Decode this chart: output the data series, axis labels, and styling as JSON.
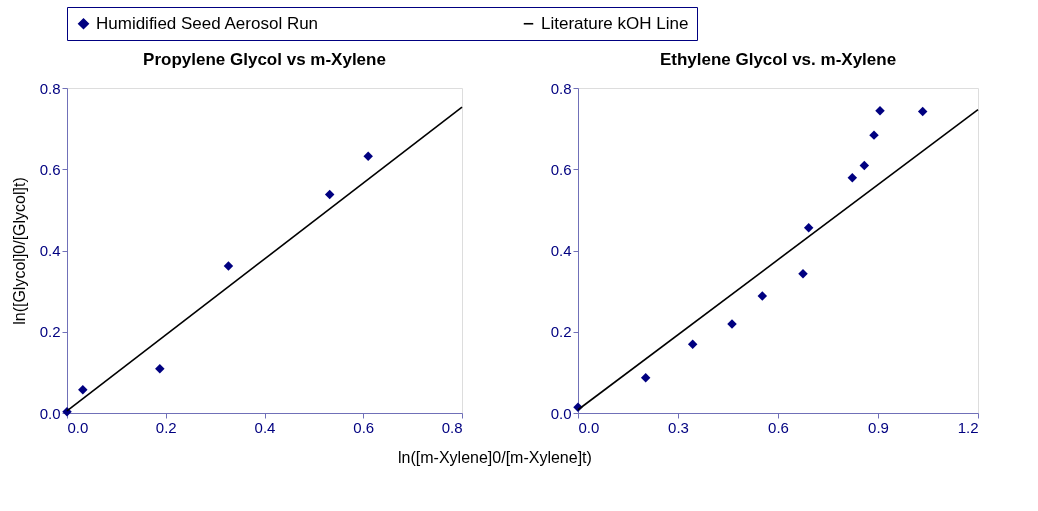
{
  "chart_data": [
    {
      "type": "scatter",
      "title": "Propylene Glycol vs m-Xylene",
      "xlabel": "ln([m-Xylene]0/[m-Xylene]t)",
      "ylabel": "ln([Glycol]0/[Glycol]t)",
      "xlim": [
        0,
        0.8
      ],
      "ylim": [
        0,
        0.8
      ],
      "xticks": [
        {
          "value": 0,
          "label": "0.0"
        },
        0.2,
        0.4,
        0.6,
        0.8
      ],
      "yticks": [
        {
          "value": 0,
          "label": "0.0"
        },
        0.2,
        0.4,
        0.6,
        0.8
      ],
      "grid": false,
      "legend": "top",
      "series": [
        {
          "name": "Humidified Seed Aerosol Run",
          "marker": "diamond",
          "color": "#000080",
          "x": [
            0.0,
            0.032,
            0.188,
            0.327,
            0.532,
            0.61
          ],
          "values": [
            0.003,
            0.057,
            0.109,
            0.362,
            0.538,
            0.632
          ]
        },
        {
          "name": "Literature kOH Line",
          "type": "line",
          "line_style": "solid",
          "color": "#000000",
          "x": [
            0,
            0.8
          ],
          "values": [
            0.005,
            0.753
          ]
        }
      ]
    },
    {
      "type": "scatter",
      "title": "Ethylene Glycol vs. m-Xylene",
      "xlim": [
        0,
        1.2
      ],
      "ylim": [
        0,
        0.8
      ],
      "xticks": [
        {
          "value": 0,
          "label": "0.0"
        },
        0.3,
        0.6,
        0.9,
        1.2
      ],
      "yticks": [
        {
          "value": 0,
          "label": "0.0"
        },
        0.2,
        0.4,
        0.6,
        0.8
      ],
      "grid": false,
      "legend": "top",
      "series": [
        {
          "name": "Humidified Seed Aerosol Run",
          "marker": "diamond",
          "color": "#000080",
          "x": [
            0.0,
            0.203,
            0.344,
            0.462,
            0.553,
            0.675,
            0.692,
            0.823,
            0.859,
            0.888,
            0.906,
            1.034
          ],
          "values": [
            0.014,
            0.087,
            0.169,
            0.219,
            0.288,
            0.343,
            0.456,
            0.579,
            0.609,
            0.684,
            0.744,
            0.742
          ]
        },
        {
          "name": "Literature kOH Line",
          "type": "line",
          "line_style": "solid",
          "color": "#000000",
          "x": [
            0,
            1.2
          ],
          "values": [
            0.008,
            0.747
          ]
        }
      ]
    }
  ]
}
